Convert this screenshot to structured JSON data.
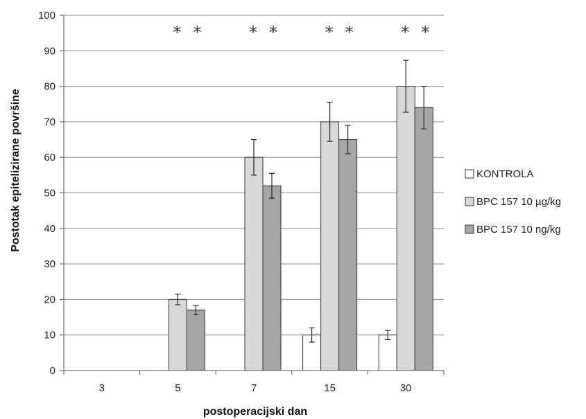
{
  "chart_data": {
    "type": "bar",
    "title": "",
    "xlabel": "postoperacijski dan",
    "ylabel": "Postotak epitelizirane površine",
    "ylim": [
      0,
      100
    ],
    "yticks": [
      0,
      10,
      20,
      30,
      40,
      50,
      60,
      70,
      80,
      90,
      100
    ],
    "categories": [
      "3",
      "5",
      "7",
      "15",
      "30"
    ],
    "grid": true,
    "legend": "right",
    "series": [
      {
        "name": "KONTROLA",
        "color": "#ffffff",
        "values": [
          null,
          null,
          null,
          10,
          10
        ],
        "errors": [
          null,
          null,
          null,
          2,
          1.3
        ]
      },
      {
        "name": "BPC 157 10 µg/kg",
        "color": "#d8d8d8",
        "values": [
          null,
          20,
          60,
          70,
          80
        ],
        "errors": [
          null,
          1.5,
          5,
          5.5,
          7.3
        ]
      },
      {
        "name": "BPC 157 10 ng/kg",
        "color": "#a6a6a6",
        "values": [
          null,
          17,
          52,
          65,
          74
        ],
        "errors": [
          null,
          1.3,
          3.5,
          4,
          6
        ]
      }
    ],
    "annotations": [
      {
        "category": "5",
        "series": [
          1,
          2
        ],
        "text": "*"
      },
      {
        "category": "7",
        "series": [
          1,
          2
        ],
        "text": "*"
      },
      {
        "category": "15",
        "series": [
          1,
          2
        ],
        "text": "*"
      },
      {
        "category": "30",
        "series": [
          1,
          2
        ],
        "text": "*"
      }
    ]
  }
}
